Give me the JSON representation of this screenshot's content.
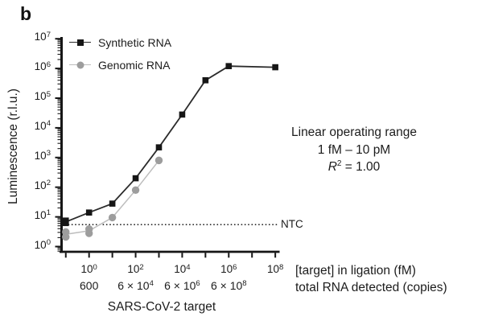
{
  "panel_label": "b",
  "colors": {
    "axis_black": "#161616",
    "text": "#1c1c1c",
    "synthetic_marker": "#161616",
    "synthetic_line": "#2b2b2b",
    "genomic_marker": "#9d9d9d",
    "genomic_line": "#bdbdbd",
    "background": "#ffffff"
  },
  "chart_data": {
    "type": "line",
    "x_scale": "log",
    "y_scale": "log",
    "grid": false,
    "legend_position": "top-left-inside",
    "y_axis": {
      "label": "Luminescence (r.l.u.)",
      "tick_labels": [
        "10^0",
        "10^1",
        "10^2",
        "10^3",
        "10^4",
        "10^5",
        "10^6",
        "10^7"
      ],
      "tick_exponents": [
        0,
        1,
        2,
        3,
        4,
        5,
        6,
        7
      ],
      "range_exponents": [
        0,
        7
      ]
    },
    "x_axis": {
      "title": "SARS-CoV-2 target",
      "unit_label_fm": "[target] in ligation (fM)",
      "unit_label_copies": "total RNA detected (copies)",
      "tick_exponents": [
        -1,
        0,
        1,
        2,
        3,
        4,
        5,
        6,
        7,
        8
      ],
      "labeled_ticks": [
        {
          "exp": 0,
          "fm_label": "10^0",
          "copies_label": "600"
        },
        {
          "exp": 2,
          "fm_label": "10^2",
          "copies_label": "6 × 10^4"
        },
        {
          "exp": 4,
          "fm_label": "10^4",
          "copies_label": "6 × 10^6"
        },
        {
          "exp": 6,
          "fm_label": "10^6",
          "copies_label": "6 × 10^8"
        },
        {
          "exp": 8,
          "fm_label": "10^8",
          "copies_label": ""
        }
      ]
    },
    "series": [
      {
        "name": "Synthetic RNA",
        "marker": "square",
        "marker_color": "#161616",
        "line_color": "#2b2b2b",
        "points_fm_rlu": [
          [
            0.1,
            7.5
          ],
          [
            0.1,
            6.2
          ],
          [
            1,
            14
          ],
          [
            10,
            28
          ],
          [
            100,
            200
          ],
          [
            1000,
            2200
          ],
          [
            10000,
            28000
          ],
          [
            100000,
            400000
          ],
          [
            1000000,
            1200000
          ],
          [
            100000000,
            1100000
          ]
        ],
        "line_fm_rlu": [
          [
            0.1,
            6.8
          ],
          [
            1,
            14
          ],
          [
            10,
            28
          ],
          [
            100,
            200
          ],
          [
            1000,
            2200
          ],
          [
            10000,
            28000
          ],
          [
            100000,
            400000
          ],
          [
            1000000,
            1200000
          ],
          [
            100000000,
            1100000
          ]
        ]
      },
      {
        "name": "Genomic RNA",
        "marker": "circle",
        "marker_color": "#9d9d9d",
        "line_color": "#bdbdbd",
        "points_fm_rlu": [
          [
            0.1,
            3.1
          ],
          [
            0.1,
            2.1
          ],
          [
            1,
            3.9
          ],
          [
            1,
            2.8
          ],
          [
            10,
            9.5
          ],
          [
            100,
            80
          ],
          [
            1000,
            800
          ]
        ],
        "line_fm_rlu": [
          [
            0.1,
            2.6
          ],
          [
            1,
            3.4
          ],
          [
            10,
            9.5
          ],
          [
            100,
            80
          ],
          [
            1000,
            800
          ]
        ]
      }
    ],
    "ntc_line": {
      "rlu_value": 5.5,
      "style": "dotted",
      "label": "NTC"
    },
    "annotation": {
      "line1": "Linear operating range",
      "line2": "1 fM – 10 pM",
      "r2_base": "R",
      "r2_sup": "2",
      "r2_rest": " = 1.00"
    }
  }
}
